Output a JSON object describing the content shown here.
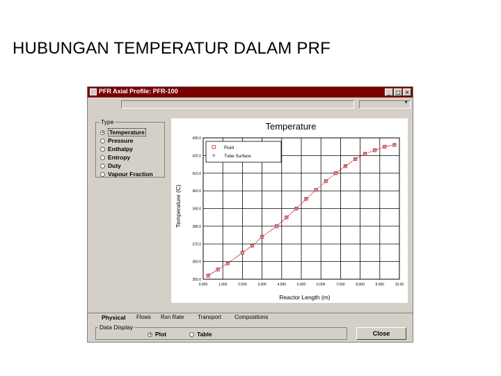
{
  "slide": {
    "title": "HUBUNGAN TEMPERATUR DALAM PRF"
  },
  "window": {
    "title": "PFR Axial Profile: PFR-100",
    "controls": {
      "minimize": "_",
      "maximize": "□",
      "close": "×"
    }
  },
  "type_group": {
    "label": "Type",
    "options": [
      {
        "label": "Temperature",
        "selected": true
      },
      {
        "label": "Pressure",
        "selected": false
      },
      {
        "label": "Enthalpy",
        "selected": false
      },
      {
        "label": "Entropy",
        "selected": false
      },
      {
        "label": "Duty",
        "selected": false
      },
      {
        "label": "Vapour Fraction",
        "selected": false
      }
    ]
  },
  "tabs": [
    "Physical",
    "Flows",
    "Rxn Rate",
    "Transport",
    "Compositions"
  ],
  "data_display": {
    "label": "Data Display",
    "options": [
      {
        "label": "Plot",
        "selected": true
      },
      {
        "label": "Table",
        "selected": false
      }
    ]
  },
  "buttons": {
    "close": "Close"
  },
  "colors": {
    "titlebar": "#7a0000",
    "series": "#d92020",
    "face": "#d4d0c8"
  },
  "chart_data": {
    "type": "line",
    "title": "Temperature",
    "xlabel": "Reactor Length (m)",
    "ylabel": "Temperature (C)",
    "xlim": [
      0,
      10
    ],
    "ylim": [
      350,
      430
    ],
    "x_ticks": [
      "0.000",
      "1.000",
      "2.000",
      "3.000",
      "4.000",
      "5.000",
      "6.000",
      "7.000",
      "8.000",
      "9.000",
      "10.00"
    ],
    "y_ticks": [
      "350.0",
      "360.0",
      "370.0",
      "380.0",
      "390.0",
      "400.0",
      "410.0",
      "420.0",
      "430.0"
    ],
    "grid": true,
    "legend": "top-left",
    "series": [
      {
        "name": "Fluid",
        "marker": "square",
        "x": [
          0.25,
          0.75,
          1.25,
          2.0,
          2.5,
          3.0,
          3.75,
          4.25,
          4.75,
          5.25,
          5.75,
          6.25,
          6.75,
          7.25,
          7.75,
          8.25,
          8.75,
          9.25,
          9.75
        ],
        "y": [
          352,
          355.5,
          359,
          365,
          369,
          374,
          380,
          385,
          390,
          395.5,
          400.5,
          405.5,
          410,
          414,
          418,
          421,
          423,
          425,
          426
        ]
      },
      {
        "name": "Tube Surface",
        "marker": "triangle",
        "x": [
          0.25,
          0.75,
          1.25,
          2.0,
          2.5,
          3.0,
          3.75,
          4.25,
          4.75,
          5.25,
          5.75,
          6.25,
          6.75,
          7.25,
          7.75,
          8.25,
          8.75,
          9.25,
          9.75
        ],
        "y": [
          352,
          355.5,
          359,
          365,
          369,
          374,
          380,
          385,
          390,
          395.5,
          400.5,
          405.5,
          410,
          414,
          418,
          421,
          423,
          425,
          426
        ]
      }
    ]
  }
}
